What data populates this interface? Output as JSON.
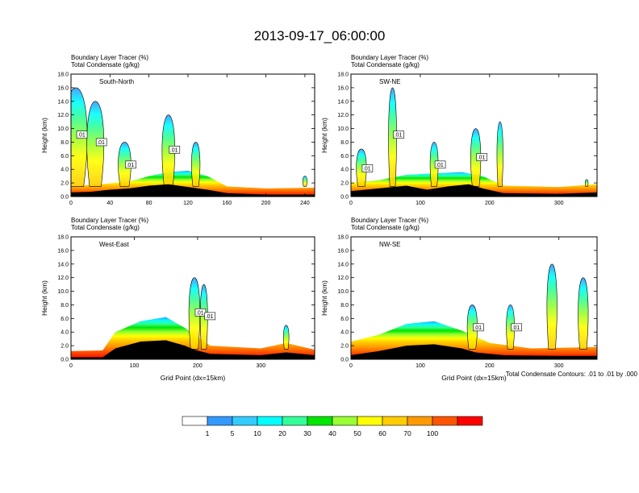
{
  "figure_title": "2013-09-17_06:00:00",
  "footnote": "Total Condensate Contours: .01 to .01 by .000",
  "chart_data": [
    {
      "type": "heatmap",
      "panel_label": "South-North",
      "left_string_1": "Boundary Layer Tracer   (%)",
      "left_string_2": "Total Condensate   (g/kg)",
      "ylabel": "Height (km)",
      "xlabel": "",
      "xlim": [
        0,
        250
      ],
      "ylim": [
        0,
        18
      ],
      "xticks": [
        0,
        40,
        80,
        120,
        160,
        200,
        240
      ],
      "yticks": [
        0.0,
        2.0,
        4.0,
        6.0,
        8.0,
        10.0,
        12.0,
        14.0,
        16.0,
        18.0
      ],
      "contour_labels": [
        ".01",
        ".01",
        ".01",
        ".01"
      ],
      "marker_x": 125,
      "terrain": [
        [
          0,
          0.6
        ],
        [
          20,
          0.7
        ],
        [
          40,
          1.0
        ],
        [
          60,
          1.2
        ],
        [
          80,
          1.6
        ],
        [
          100,
          1.8
        ],
        [
          120,
          1.4
        ],
        [
          140,
          1.0
        ],
        [
          160,
          0.5
        ],
        [
          200,
          0.3
        ],
        [
          250,
          0.3
        ]
      ],
      "pbl_top": [
        [
          0,
          1.5
        ],
        [
          30,
          1.8
        ],
        [
          60,
          2.2
        ],
        [
          80,
          3.0
        ],
        [
          100,
          3.6
        ],
        [
          120,
          3.8
        ],
        [
          140,
          3.0
        ],
        [
          160,
          1.5
        ],
        [
          200,
          1.2
        ],
        [
          250,
          1.3
        ]
      ],
      "plumes": [
        [
          5,
          16,
          16
        ],
        [
          25,
          14,
          12
        ],
        [
          55,
          8,
          9
        ],
        [
          100,
          12,
          9
        ],
        [
          128,
          8,
          6
        ],
        [
          240,
          3,
          3
        ]
      ]
    },
    {
      "type": "heatmap",
      "panel_label": "SW-NE",
      "left_string_1": "Boundary Layer Tracer   (%)",
      "left_string_2": "Total Condensate   (g/kg)",
      "ylabel": "Height (km)",
      "xlabel": "",
      "xlim": [
        0,
        355
      ],
      "ylim": [
        0,
        18
      ],
      "xticks": [
        0,
        100,
        200,
        300
      ],
      "yticks": [
        0.0,
        2.0,
        4.0,
        6.0,
        8.0,
        10.0,
        12.0,
        14.0,
        16.0,
        18.0
      ],
      "contour_labels": [
        ".01",
        ".01",
        ".01",
        ".01"
      ],
      "marker_x": 180,
      "terrain": [
        [
          0,
          0.8
        ],
        [
          40,
          1.2
        ],
        [
          80,
          1.6
        ],
        [
          110,
          1.0
        ],
        [
          140,
          1.5
        ],
        [
          170,
          1.8
        ],
        [
          190,
          1.2
        ],
        [
          220,
          0.5
        ],
        [
          300,
          0.4
        ],
        [
          355,
          0.6
        ]
      ],
      "pbl_top": [
        [
          0,
          2.0
        ],
        [
          40,
          2.4
        ],
        [
          80,
          3.2
        ],
        [
          120,
          3.4
        ],
        [
          160,
          3.6
        ],
        [
          190,
          3.0
        ],
        [
          220,
          1.6
        ],
        [
          300,
          1.4
        ],
        [
          355,
          1.8
        ]
      ],
      "plumes": [
        [
          15,
          7,
          10
        ],
        [
          60,
          16,
          8
        ],
        [
          120,
          8,
          8
        ],
        [
          180,
          10,
          10
        ],
        [
          215,
          11,
          6
        ],
        [
          340,
          2.5,
          3
        ]
      ]
    },
    {
      "type": "heatmap",
      "panel_label": "West-East",
      "left_string_1": "Boundary Layer Tracer   (%)",
      "left_string_2": "Total Condensate   (g/kg)",
      "ylabel": "Height (km)",
      "xlabel": "Grid Point (dx=15km)",
      "xlim": [
        0,
        385
      ],
      "ylim": [
        0,
        18
      ],
      "xticks": [
        0,
        100,
        200,
        300
      ],
      "yticks": [
        0.0,
        2.0,
        4.0,
        6.0,
        8.0,
        10.0,
        12.0,
        14.0,
        16.0,
        18.0
      ],
      "contour_labels": [
        ".01",
        ".01"
      ],
      "marker_x": 190,
      "terrain": [
        [
          0,
          0.3
        ],
        [
          50,
          0.3
        ],
        [
          70,
          1.6
        ],
        [
          110,
          2.6
        ],
        [
          150,
          2.8
        ],
        [
          180,
          2.0
        ],
        [
          195,
          1.4
        ],
        [
          220,
          0.8
        ],
        [
          300,
          0.6
        ],
        [
          340,
          1.0
        ],
        [
          385,
          0.6
        ]
      ],
      "pbl_top": [
        [
          0,
          1.2
        ],
        [
          50,
          1.3
        ],
        [
          70,
          4.0
        ],
        [
          110,
          5.6
        ],
        [
          150,
          6.2
        ],
        [
          180,
          4.6
        ],
        [
          220,
          2.0
        ],
        [
          300,
          1.6
        ],
        [
          340,
          2.4
        ],
        [
          385,
          1.4
        ]
      ],
      "plumes": [
        [
          195,
          12,
          12
        ],
        [
          210,
          11,
          8
        ],
        [
          340,
          5,
          6
        ]
      ]
    },
    {
      "type": "heatmap",
      "panel_label": "NW-SE",
      "left_string_1": "Boundary Layer Tracer   (%)",
      "left_string_2": "Total Condensate   (g/kg)",
      "ylabel": "Height (km)",
      "xlabel": "Grid Point (dx=15km)",
      "xlim": [
        0,
        355
      ],
      "ylim": [
        0,
        18
      ],
      "xticks": [
        0,
        100,
        200,
        300
      ],
      "yticks": [
        0.0,
        2.0,
        4.0,
        6.0,
        8.0,
        10.0,
        12.0,
        14.0,
        16.0,
        18.0
      ],
      "contour_labels": [
        ".01",
        ".01"
      ],
      "marker_x": 180,
      "terrain": [
        [
          0,
          0.6
        ],
        [
          40,
          1.2
        ],
        [
          80,
          2.0
        ],
        [
          120,
          2.2
        ],
        [
          160,
          1.6
        ],
        [
          180,
          1.0
        ],
        [
          220,
          0.6
        ],
        [
          300,
          0.5
        ],
        [
          355,
          0.5
        ]
      ],
      "pbl_top": [
        [
          0,
          2.6
        ],
        [
          40,
          3.6
        ],
        [
          80,
          5.2
        ],
        [
          120,
          5.6
        ],
        [
          160,
          4.2
        ],
        [
          200,
          2.4
        ],
        [
          260,
          1.6
        ],
        [
          355,
          1.8
        ]
      ],
      "plumes": [
        [
          175,
          8,
          10
        ],
        [
          230,
          8,
          8
        ],
        [
          290,
          14,
          10
        ],
        [
          335,
          12,
          10
        ]
      ]
    }
  ],
  "colorbar": {
    "colors": [
      "#ffffff",
      "#3399ff",
      "#33ccff",
      "#00ffff",
      "#33ff99",
      "#00e600",
      "#99ff33",
      "#ffff00",
      "#ffcc00",
      "#ff9900",
      "#ff5500",
      "#ff0000"
    ],
    "labels": [
      "1",
      "5",
      "10",
      "20",
      "30",
      "40",
      "50",
      "60",
      "70",
      "100"
    ]
  }
}
